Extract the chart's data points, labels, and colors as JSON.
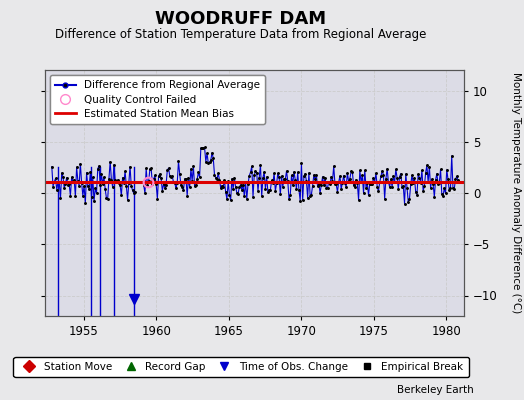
{
  "title": "WOODRUFF DAM",
  "subtitle": "Difference of Station Temperature Data from Regional Average",
  "ylabel": "Monthly Temperature Anomaly Difference (°C)",
  "credit": "Berkeley Earth",
  "xlim": [
    1952.3,
    1981.2
  ],
  "ylim": [
    -12,
    12
  ],
  "yticks": [
    -10,
    -5,
    0,
    5,
    10
  ],
  "xticks": [
    1955,
    1960,
    1965,
    1970,
    1975,
    1980
  ],
  "bias_value": 1.05,
  "background_color": "#e8e8ea",
  "plot_bg_color": "#dcdce6",
  "line_color": "#0000cc",
  "marker_color": "#000000",
  "bias_color": "#dd0000",
  "vline_color": "#8888cc",
  "qc_color": "#ff88cc",
  "seed": 7,
  "data_mean": 1.05,
  "data_std": 0.9,
  "n_points": 328,
  "t_start": 1952.8,
  "t_end": 1980.8,
  "gap_start": 1958.6,
  "gap_end": 1959.1,
  "vlines_x": [
    1953.25,
    1955.5,
    1956.1,
    1957.1,
    1958.5
  ],
  "obs_change_x": 1958.5,
  "obs_change_y": -10.3,
  "qc_x": 1959.4,
  "qc_y": 1.05
}
